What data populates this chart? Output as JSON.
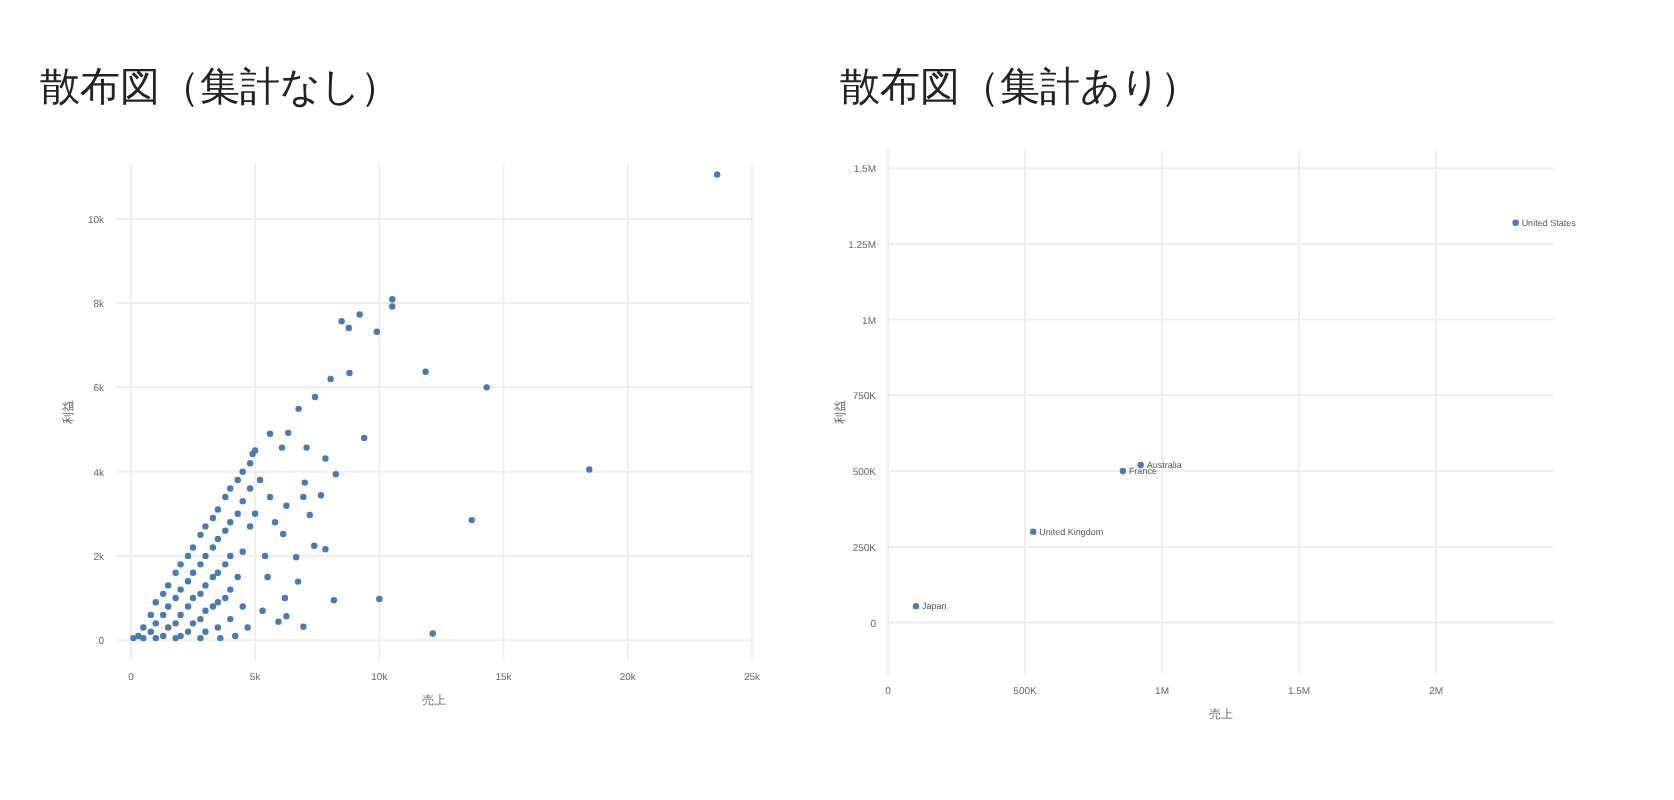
{
  "chart_data": [
    {
      "type": "scatter",
      "title": "散布図（集計なし）",
      "xlabel": "売上",
      "ylabel": "利益",
      "color": "#4a7ab5",
      "marker": "circle",
      "grid": true,
      "xlim": [
        -600,
        25000
      ],
      "ylim": [
        -470,
        11300
      ],
      "xticks": [
        0,
        {
          "value": 5000,
          "label": "5k"
        },
        {
          "value": 10000,
          "label": "10k"
        },
        {
          "value": 15000,
          "label": "15k"
        },
        {
          "value": 20000,
          "label": "20k"
        },
        {
          "value": 25000,
          "label": "25k"
        }
      ],
      "yticks": [
        0,
        {
          "value": 2000,
          "label": "2k"
        },
        {
          "value": 4000,
          "label": "4k"
        },
        {
          "value": 6000,
          "label": "6k"
        },
        {
          "value": 8000,
          "label": "8k"
        },
        {
          "value": 10000,
          "label": "10k"
        }
      ],
      "x": [
        23600,
        10520,
        10520,
        9210,
        8480,
        8770,
        9900,
        8040,
        8800,
        11860,
        14320,
        7410,
        6750,
        5600,
        6330,
        9390,
        18450,
        7830,
        8250,
        13720,
        7830,
        7380,
        8170,
        10000,
        12150,
        6940,
        6260,
        5940,
        6730,
        6650,
        6130,
        7200,
        7650,
        6940,
        6260,
        7000,
        7070,
        6080,
        4900,
        5000,
        100,
        300,
        500,
        500,
        800,
        800,
        1000,
        1000,
        1000,
        1300,
        1300,
        1300,
        1500,
        1500,
        1500,
        1800,
        1800,
        1800,
        1800,
        2000,
        2000,
        2000,
        2000,
        2300,
        2300,
        2300,
        2300,
        2500,
        2500,
        2500,
        2500,
        2800,
        2800,
        2800,
        2800,
        2800,
        3000,
        3000,
        3000,
        3000,
        3000,
        3300,
        3300,
        3300,
        3300,
        3500,
        3500,
        3500,
        3500,
        3500,
        3800,
        3800,
        3800,
        3800,
        4000,
        4000,
        4000,
        4000,
        4000,
        4300,
        4300,
        4300,
        4500,
        4500,
        4500,
        4500,
        4800,
        4800,
        4800,
        5000,
        5200,
        5400,
        5500,
        5300,
        4700,
        4200,
        3600,
        5600,
        5800,
        6200
      ],
      "values": [
        11050,
        8090,
        7920,
        7730,
        7570,
        7410,
        7320,
        6200,
        6340,
        6370,
        6000,
        5770,
        5490,
        4900,
        4920,
        4800,
        4050,
        4310,
        3940,
        2850,
        2160,
        2240,
        950,
        980,
        160,
        320,
        570,
        440,
        1390,
        1970,
        2520,
        2970,
        3440,
        3400,
        3190,
        3740,
        4570,
        4570,
        4420,
        4500,
        50,
        100,
        300,
        50,
        600,
        200,
        900,
        400,
        50,
        1100,
        600,
        100,
        1300,
        800,
        300,
        1600,
        1000,
        400,
        50,
        1800,
        1200,
        600,
        100,
        2000,
        1400,
        800,
        200,
        2200,
        1600,
        1000,
        400,
        2500,
        1800,
        1100,
        500,
        50,
        2700,
        2000,
        1300,
        700,
        200,
        2900,
        2200,
        1500,
        800,
        3100,
        2400,
        1600,
        900,
        300,
        3400,
        2600,
        1800,
        1000,
        3600,
        2800,
        2000,
        1200,
        500,
        3800,
        3000,
        1500,
        4000,
        3300,
        2100,
        800,
        4200,
        3600,
        2700,
        3000,
        3800,
        2000,
        1500,
        700,
        300,
        100,
        50,
        3400,
        2800,
        1000
      ]
    },
    {
      "type": "scatter",
      "title": "散布図（集計あり）",
      "xlabel": "売上",
      "ylabel": "利益",
      "color": "#4a7ab5",
      "marker": "circle",
      "grid": true,
      "xlim": [
        0,
        2430000
      ],
      "ylim": [
        -170000,
        1560000
      ],
      "xticks": [
        0,
        {
          "value": 500000,
          "label": "500K"
        },
        {
          "value": 1000000,
          "label": "1M"
        },
        {
          "value": 1500000,
          "label": "1.5M"
        },
        {
          "value": 2000000,
          "label": "2M"
        }
      ],
      "yticks": [
        0,
        {
          "value": 250000,
          "label": "250K"
        },
        {
          "value": 500000,
          "label": "500K"
        },
        {
          "value": 750000,
          "label": "750K"
        },
        {
          "value": 1000000,
          "label": "1M"
        },
        {
          "value": 1250000,
          "label": "1.25M"
        },
        {
          "value": 1500000,
          "label": "1.5M"
        }
      ],
      "x": [
        102000,
        530000,
        857000,
        922000,
        2290000
      ],
      "values": [
        54000,
        300000,
        500000,
        520000,
        1320000
      ],
      "annotations": [
        {
          "text": "Japan",
          "x": 102000,
          "y": 54000
        },
        {
          "text": "United Kingdom",
          "x": 530000,
          "y": 300000
        },
        {
          "text": "France",
          "x": 857000,
          "y": 500000
        },
        {
          "text": "Australia",
          "x": 922000,
          "y": 520000
        },
        {
          "text": "United States",
          "x": 2290000,
          "y": 1320000
        }
      ]
    }
  ]
}
